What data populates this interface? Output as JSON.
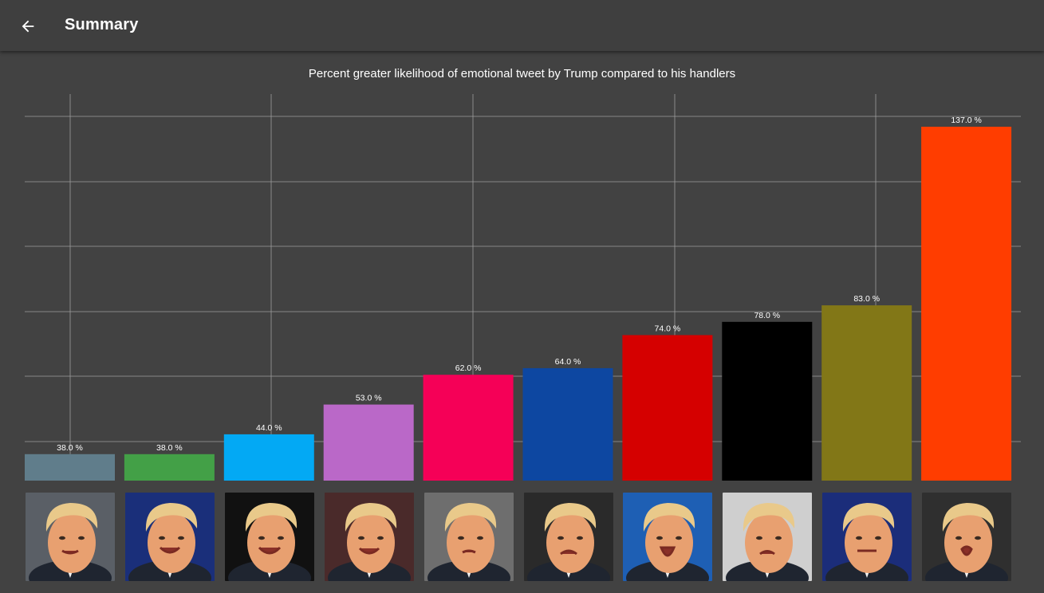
{
  "app_bar": {
    "title": "Summary",
    "back_icon": "arrow-left-icon"
  },
  "colors": {
    "background": "#424242",
    "app_bar": "#3f3f3f",
    "grid": "#9e9e9e",
    "text": "#ffffff"
  },
  "chart_data": {
    "type": "bar",
    "title": "Percent greater likelihood of emotional tweet by Trump compared to his handlers",
    "xlabel": "",
    "ylabel": "",
    "ylim": [
      30,
      140
    ],
    "grid": true,
    "legend": "none",
    "categories": [
      "",
      "",
      "",
      "",
      "",
      "",
      "",
      "",
      "",
      ""
    ],
    "values": [
      38.0,
      38.0,
      44.0,
      53.0,
      62.0,
      64.0,
      74.0,
      78.0,
      83.0,
      137.0
    ],
    "value_labels": [
      "38.0 %",
      "38.0 %",
      "44.0 %",
      "53.0 %",
      "62.0 %",
      "64.0 %",
      "74.0 %",
      "78.0 %",
      "83.0 %",
      "137.0 %"
    ],
    "bar_colors": [
      "#607d8b",
      "#43a047",
      "#03a9f4",
      "#ba68c8",
      "#f50057",
      "#0d47a1",
      "#d50000",
      "#000000",
      "#827717",
      "#ff3d00"
    ],
    "x_category_icons": [
      "trump-pointing-face-icon",
      "trump-smiling-face-icon",
      "trump-grinning-face-icon",
      "trump-happy-face-icon",
      "trump-speaking-face-icon",
      "trump-frowning-face-icon",
      "trump-shouting-face-icon",
      "trump-pouting-face-icon",
      "trump-grimacing-face-icon",
      "trump-surprised-face-icon"
    ]
  }
}
